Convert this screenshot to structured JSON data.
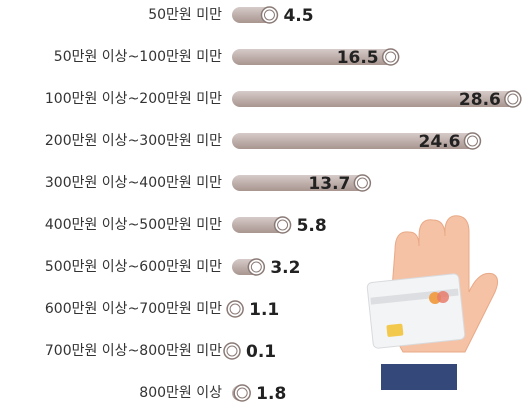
{
  "chart_data": {
    "type": "bar",
    "orientation": "horizontal",
    "categories": [
      "50만원 미만",
      "50만원 이상~100만원 미만",
      "100만원 이상~200만원 미만",
      "200만원 이상~300만원 미만",
      "300만원 이상~400만원 미만",
      "400만원 이상~500만원 미만",
      "500만원 이상~600만원 미만",
      "600만원 이상~700만원 미만",
      "700만원 이상~800만원 미만",
      "800만원 이상"
    ],
    "values": [
      4.5,
      16.5,
      28.6,
      24.6,
      13.7,
      5.8,
      3.2,
      1.1,
      0.1,
      1.8
    ],
    "color": "#b9aaa7"
  }
}
